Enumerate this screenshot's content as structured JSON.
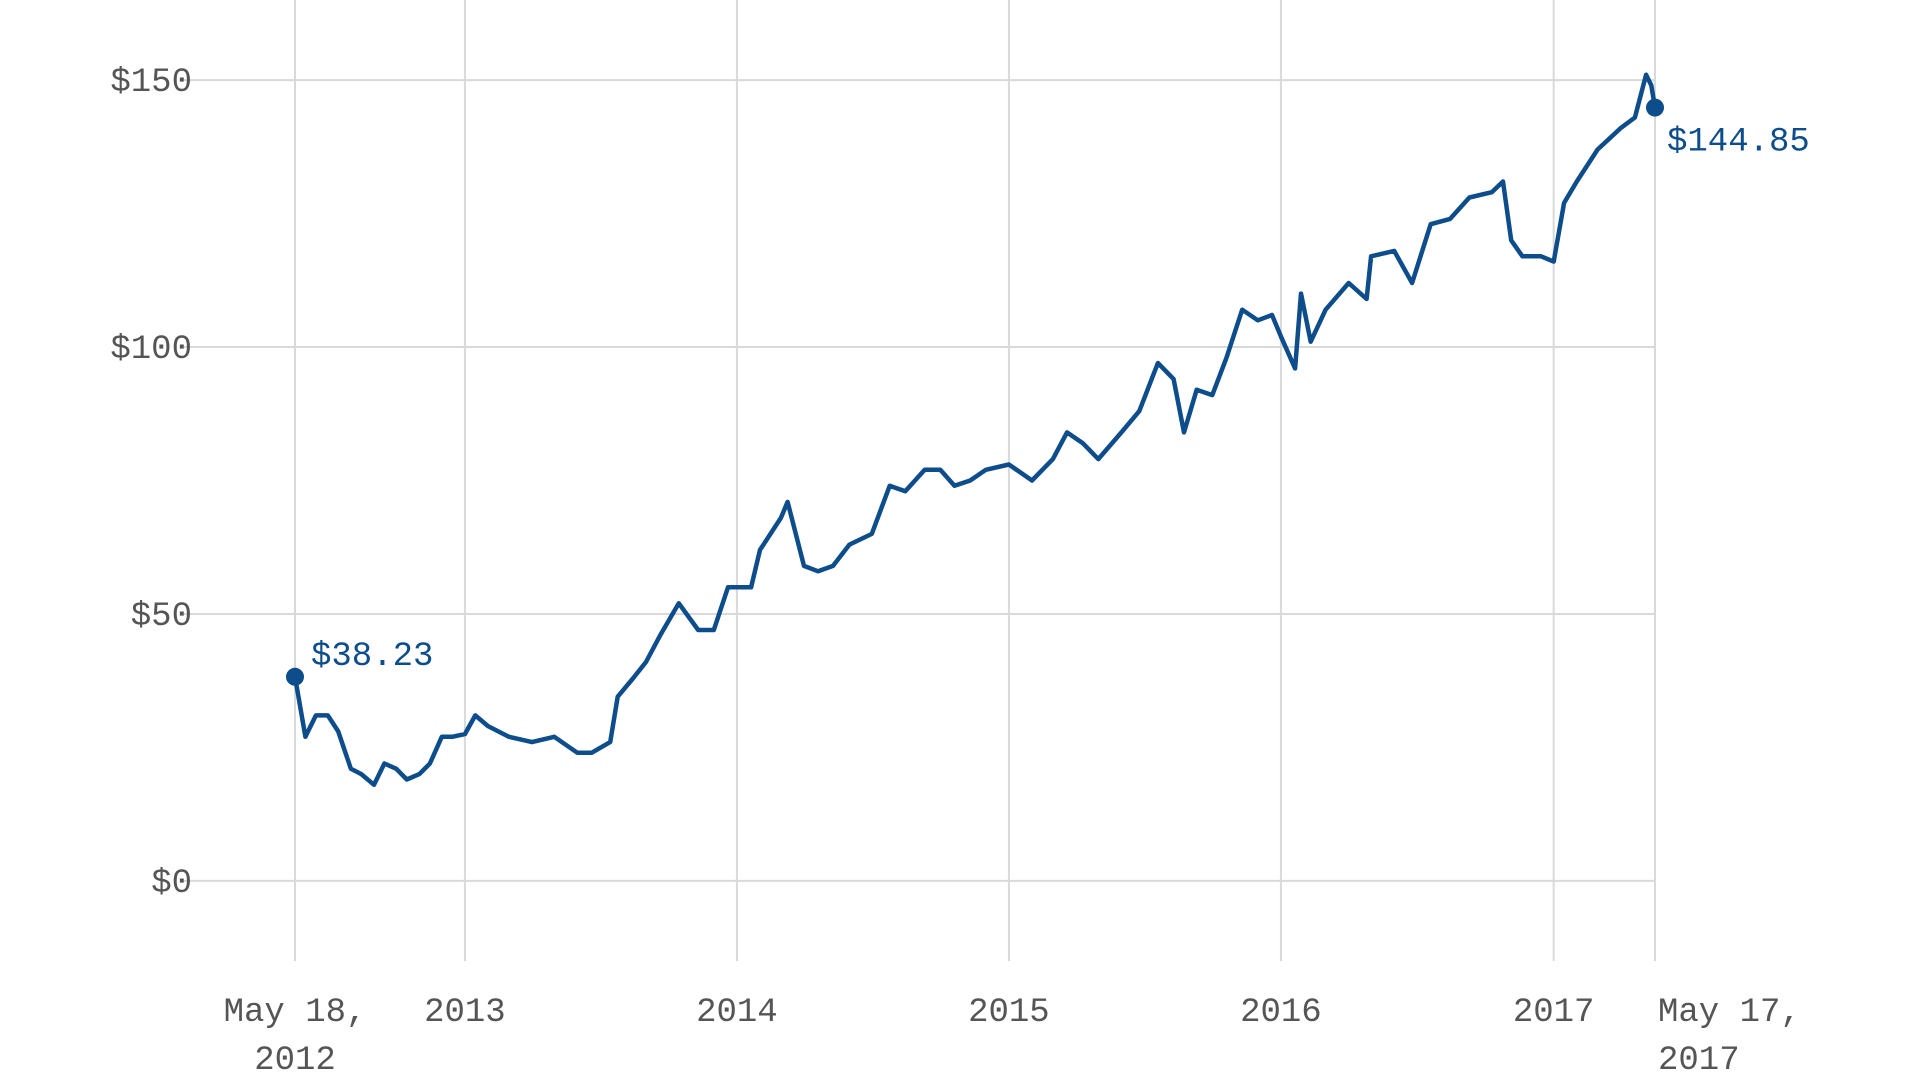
{
  "chart_data": {
    "type": "line",
    "x": [
      "2012-05-18",
      "2012-06-01",
      "2012-06-15",
      "2012-07-01",
      "2012-07-15",
      "2012-08-01",
      "2012-08-15",
      "2012-09-01",
      "2012-09-15",
      "2012-10-01",
      "2012-10-15",
      "2012-11-01",
      "2012-11-15",
      "2012-12-01",
      "2012-12-15",
      "2013-01-01",
      "2013-01-15",
      "2013-02-01",
      "2013-03-01",
      "2013-04-01",
      "2013-05-01",
      "2013-06-01",
      "2013-06-20",
      "2013-07-15",
      "2013-07-25",
      "2013-08-15",
      "2013-09-01",
      "2013-09-20",
      "2013-10-15",
      "2013-11-10",
      "2013-12-01",
      "2013-12-20",
      "2014-01-01",
      "2014-01-20",
      "2014-02-01",
      "2014-03-01",
      "2014-03-10",
      "2014-04-01",
      "2014-04-20",
      "2014-05-10",
      "2014-06-01",
      "2014-07-01",
      "2014-07-25",
      "2014-08-15",
      "2014-09-10",
      "2014-10-01",
      "2014-10-20",
      "2014-11-10",
      "2014-12-01",
      "2015-01-01",
      "2015-02-01",
      "2015-03-01",
      "2015-03-20",
      "2015-04-10",
      "2015-05-01",
      "2015-06-01",
      "2015-06-25",
      "2015-07-20",
      "2015-08-10",
      "2015-08-24",
      "2015-09-10",
      "2015-10-01",
      "2015-10-20",
      "2015-11-10",
      "2015-12-01",
      "2015-12-20",
      "2016-01-01",
      "2016-01-20",
      "2016-01-28",
      "2016-02-10",
      "2016-03-01",
      "2016-04-01",
      "2016-04-25",
      "2016-05-01",
      "2016-06-01",
      "2016-06-25",
      "2016-07-20",
      "2016-08-15",
      "2016-09-10",
      "2016-10-10",
      "2016-10-25",
      "2016-11-05",
      "2016-11-20",
      "2016-12-15",
      "2017-01-01",
      "2017-01-15",
      "2017-02-01",
      "2017-03-01",
      "2017-04-01",
      "2017-04-20",
      "2017-05-05",
      "2017-05-12",
      "2017-05-17"
    ],
    "series": [
      {
        "color": "#0d4d8c",
        "values": [
          38.23,
          27,
          31,
          31,
          28,
          21,
          20,
          18,
          22,
          21,
          19,
          20,
          22,
          27,
          27,
          27.5,
          31,
          29,
          27,
          26,
          27,
          24,
          24,
          26,
          34.5,
          38,
          41,
          46,
          52,
          47,
          47,
          55,
          55,
          55,
          62,
          68,
          71,
          59,
          58,
          59,
          63,
          65,
          74,
          73,
          77,
          77,
          74,
          75,
          77,
          78,
          75,
          79,
          84,
          82,
          79,
          84,
          88,
          97,
          94,
          84,
          92,
          91,
          98,
          107,
          105,
          106,
          102,
          96,
          110,
          101,
          107,
          112,
          109,
          117,
          118,
          112,
          123,
          124,
          128,
          129,
          131,
          120,
          117,
          117,
          116,
          127,
          131,
          137,
          141,
          143,
          151,
          149,
          144.85
        ]
      }
    ],
    "annotations": [
      {
        "x": "2012-05-18",
        "value": 38.23,
        "label": "$38.23"
      },
      {
        "x": "2017-05-17",
        "value": 144.85,
        "label": "$144.85"
      }
    ],
    "xlim": [
      "2012-05-18",
      "2017-05-17"
    ],
    "xticks": [
      {
        "value": "2012-05-18",
        "label": "May 18, 2012"
      },
      {
        "value": "2013-01-01",
        "label": "2013"
      },
      {
        "value": "2014-01-01",
        "label": "2014"
      },
      {
        "value": "2015-01-01",
        "label": "2015"
      },
      {
        "value": "2016-01-01",
        "label": "2016"
      },
      {
        "value": "2017-01-01",
        "label": "2017"
      },
      {
        "value": "2017-05-17",
        "label": "May 17, 2017"
      }
    ],
    "ylim": [
      -15,
      165
    ],
    "yticks": [
      {
        "value": 0,
        "label": "$0"
      },
      {
        "value": 50,
        "label": "$50"
      },
      {
        "value": 100,
        "label": "$100"
      },
      {
        "value": 150,
        "label": "$150"
      }
    ],
    "grid": true
  }
}
